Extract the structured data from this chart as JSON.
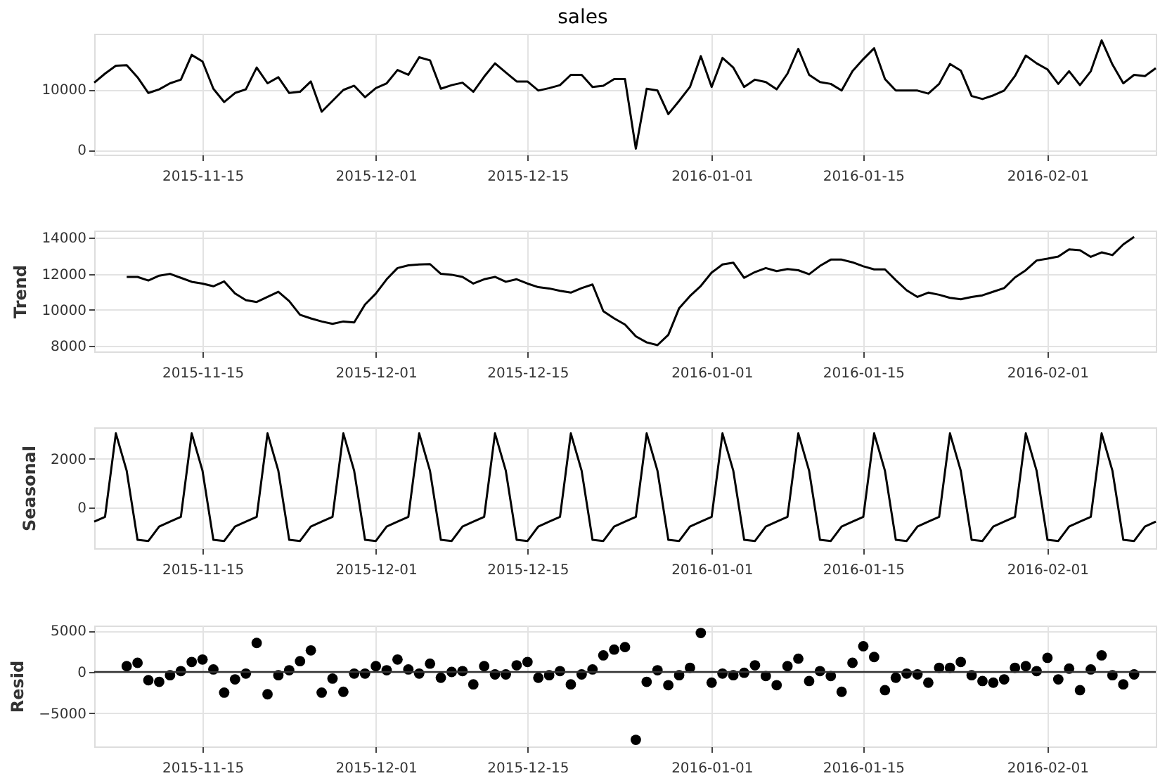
{
  "chart_data": [
    {
      "type": "line",
      "title": "sales",
      "grid": true,
      "line_style": "solid",
      "xlim": [
        "2015-11-05",
        "2016-02-11"
      ],
      "xticks": [
        "2015-11-15",
        "2015-12-01",
        "2015-12-15",
        "2016-01-01",
        "2016-01-15",
        "2016-02-01"
      ],
      "ylim": [
        -800,
        19200
      ],
      "yticks": [
        0,
        10000
      ],
      "x": [
        "2015-11-05",
        "2015-11-06",
        "2015-11-07",
        "2015-11-08",
        "2015-11-09",
        "2015-11-10",
        "2015-11-11",
        "2015-11-12",
        "2015-11-13",
        "2015-11-14",
        "2015-11-15",
        "2015-11-16",
        "2015-11-17",
        "2015-11-18",
        "2015-11-19",
        "2015-11-20",
        "2015-11-21",
        "2015-11-22",
        "2015-11-23",
        "2015-11-24",
        "2015-11-25",
        "2015-11-26",
        "2015-11-27",
        "2015-11-28",
        "2015-11-29",
        "2015-11-30",
        "2015-12-01",
        "2015-12-02",
        "2015-12-03",
        "2015-12-04",
        "2015-12-05",
        "2015-12-06",
        "2015-12-07",
        "2015-12-08",
        "2015-12-09",
        "2015-12-10",
        "2015-12-11",
        "2015-12-12",
        "2015-12-13",
        "2015-12-14",
        "2015-12-15",
        "2015-12-16",
        "2015-12-17",
        "2015-12-18",
        "2015-12-19",
        "2015-12-20",
        "2015-12-21",
        "2015-12-22",
        "2015-12-23",
        "2015-12-24",
        "2015-12-25",
        "2015-12-26",
        "2015-12-27",
        "2015-12-28",
        "2015-12-29",
        "2015-12-30",
        "2015-12-31",
        "2016-01-01",
        "2016-01-02",
        "2016-01-03",
        "2016-01-04",
        "2016-01-05",
        "2016-01-06",
        "2016-01-07",
        "2016-01-08",
        "2016-01-09",
        "2016-01-10",
        "2016-01-11",
        "2016-01-12",
        "2016-01-13",
        "2016-01-14",
        "2016-01-15",
        "2016-01-16",
        "2016-01-17",
        "2016-01-18",
        "2016-01-19",
        "2016-01-20",
        "2016-01-21",
        "2016-01-22",
        "2016-01-23",
        "2016-01-24",
        "2016-01-25",
        "2016-01-26",
        "2016-01-27",
        "2016-01-28",
        "2016-01-29",
        "2016-01-30",
        "2016-01-31",
        "2016-02-01",
        "2016-02-02",
        "2016-02-03",
        "2016-02-04",
        "2016-02-05",
        "2016-02-06",
        "2016-02-07",
        "2016-02-08",
        "2016-02-09",
        "2016-02-10",
        "2016-02-11"
      ],
      "series": [
        {
          "color": "#000000",
          "values": [
            11100,
            12600,
            13900,
            14000,
            12000,
            9400,
            10000,
            11000,
            11600,
            15700,
            14600,
            10100,
            7900,
            9400,
            10000,
            13600,
            11000,
            12000,
            9400,
            9600,
            11300,
            6300,
            8100,
            9900,
            10600,
            8700,
            10200,
            11000,
            13200,
            12400,
            15300,
            14800,
            10100,
            10700,
            11100,
            9600,
            12100,
            14300,
            12800,
            11300,
            11300,
            9800,
            10200,
            10700,
            12400,
            12400,
            10400,
            10600,
            11700,
            11700,
            200,
            10100,
            9800,
            5900,
            8100,
            10400,
            15500,
            10400,
            15200,
            13600,
            10400,
            11600,
            11200,
            10000,
            12600,
            16700,
            12400,
            11200,
            10900,
            9800,
            13000,
            15000,
            16800,
            11700,
            9800,
            9800,
            9800,
            9300,
            10900,
            14200,
            13100,
            8900,
            8400,
            9000,
            9800,
            12200,
            15600,
            14300,
            13300,
            10900,
            13000,
            10700,
            13000,
            18100,
            14100,
            11000,
            12400,
            12200,
            13500
          ]
        }
      ]
    },
    {
      "type": "line",
      "ylabel": "Trend",
      "grid": true,
      "line_style": "solid",
      "xlim": [
        "2015-11-05",
        "2016-02-11"
      ],
      "xticks": [
        "2015-11-15",
        "2015-12-01",
        "2015-12-15",
        "2016-01-01",
        "2016-01-15",
        "2016-02-01"
      ],
      "ylim": [
        7700,
        14400
      ],
      "yticks": [
        8000,
        10000,
        12000,
        14000
      ],
      "x": [
        "2015-11-08",
        "2015-11-09",
        "2015-11-10",
        "2015-11-11",
        "2015-11-12",
        "2015-11-13",
        "2015-11-14",
        "2015-11-15",
        "2015-11-16",
        "2015-11-17",
        "2015-11-18",
        "2015-11-19",
        "2015-11-20",
        "2015-11-21",
        "2015-11-22",
        "2015-11-23",
        "2015-11-24",
        "2015-11-25",
        "2015-11-26",
        "2015-11-27",
        "2015-11-28",
        "2015-11-29",
        "2015-11-30",
        "2015-12-01",
        "2015-12-02",
        "2015-12-03",
        "2015-12-04",
        "2015-12-05",
        "2015-12-06",
        "2015-12-07",
        "2015-12-08",
        "2015-12-09",
        "2015-12-10",
        "2015-12-11",
        "2015-12-12",
        "2015-12-13",
        "2015-12-14",
        "2015-12-15",
        "2015-12-16",
        "2015-12-17",
        "2015-12-18",
        "2015-12-19",
        "2015-12-20",
        "2015-12-21",
        "2015-12-22",
        "2015-12-23",
        "2015-12-24",
        "2015-12-25",
        "2015-12-26",
        "2015-12-27",
        "2015-12-28",
        "2015-12-29",
        "2015-12-30",
        "2015-12-31",
        "2016-01-01",
        "2016-01-02",
        "2016-01-03",
        "2016-01-04",
        "2016-01-05",
        "2016-01-06",
        "2016-01-07",
        "2016-01-08",
        "2016-01-09",
        "2016-01-10",
        "2016-01-11",
        "2016-01-12",
        "2016-01-13",
        "2016-01-14",
        "2016-01-15",
        "2016-01-16",
        "2016-01-17",
        "2016-01-18",
        "2016-01-19",
        "2016-01-20",
        "2016-01-21",
        "2016-01-22",
        "2016-01-23",
        "2016-01-24",
        "2016-01-25",
        "2016-01-26",
        "2016-01-27",
        "2016-01-28",
        "2016-01-29",
        "2016-01-30",
        "2016-01-31",
        "2016-02-01",
        "2016-02-02",
        "2016-02-03",
        "2016-02-04",
        "2016-02-05",
        "2016-02-06",
        "2016-02-07",
        "2016-02-08",
        "2016-02-09"
      ],
      "series": [
        {
          "color": "#000000",
          "values": [
            11830,
            11830,
            11630,
            11900,
            12000,
            11780,
            11560,
            11460,
            11310,
            11580,
            10910,
            10540,
            10440,
            10720,
            11010,
            10490,
            9730,
            9530,
            9360,
            9230,
            9360,
            9310,
            10300,
            10910,
            11700,
            12320,
            12470,
            12520,
            12540,
            12000,
            11950,
            11830,
            11460,
            11700,
            11830,
            11560,
            11700,
            11460,
            11260,
            11190,
            11060,
            10960,
            11210,
            11410,
            9930,
            9530,
            9190,
            8540,
            8200,
            8050,
            8620,
            10100,
            10770,
            11330,
            12070,
            12520,
            12620,
            11780,
            12100,
            12320,
            12150,
            12270,
            12200,
            11980,
            12440,
            12790,
            12790,
            12640,
            12420,
            12250,
            12250,
            11650,
            11090,
            10720,
            10960,
            10840,
            10670,
            10590,
            10720,
            10810,
            11010,
            11210,
            11800,
            12200,
            12740,
            12840,
            12960,
            13360,
            13310,
            12940,
            13190,
            13040,
            13630,
            14050
          ]
        }
      ]
    },
    {
      "type": "line",
      "ylabel": "Seasonal",
      "grid": true,
      "line_style": "solid",
      "xlim": [
        "2015-11-05",
        "2016-02-11"
      ],
      "xticks": [
        "2015-11-15",
        "2015-12-01",
        "2015-12-15",
        "2016-01-01",
        "2016-01-15",
        "2016-02-01"
      ],
      "ylim": [
        -1700,
        3300
      ],
      "yticks": [
        0,
        2000
      ],
      "x": [
        "2015-11-05",
        "2015-11-06",
        "2015-11-07",
        "2015-11-08",
        "2015-11-09",
        "2015-11-10",
        "2015-11-11",
        "2015-11-12",
        "2015-11-13",
        "2015-11-14",
        "2015-11-15",
        "2015-11-16",
        "2015-11-17",
        "2015-11-18",
        "2015-11-19",
        "2015-11-20",
        "2015-11-21",
        "2015-11-22",
        "2015-11-23",
        "2015-11-24",
        "2015-11-25",
        "2015-11-26",
        "2015-11-27",
        "2015-11-28",
        "2015-11-29",
        "2015-11-30",
        "2015-12-01",
        "2015-12-02",
        "2015-12-03",
        "2015-12-04",
        "2015-12-05",
        "2015-12-06",
        "2015-12-07",
        "2015-12-08",
        "2015-12-09",
        "2015-12-10",
        "2015-12-11",
        "2015-12-12",
        "2015-12-13",
        "2015-12-14",
        "2015-12-15",
        "2015-12-16",
        "2015-12-17",
        "2015-12-18",
        "2015-12-19",
        "2015-12-20",
        "2015-12-21",
        "2015-12-22",
        "2015-12-23",
        "2015-12-24",
        "2015-12-25",
        "2015-12-26",
        "2015-12-27",
        "2015-12-28",
        "2015-12-29",
        "2015-12-30",
        "2015-12-31",
        "2016-01-01",
        "2016-01-02",
        "2016-01-03",
        "2016-01-04",
        "2016-01-05",
        "2016-01-06",
        "2016-01-07",
        "2016-01-08",
        "2016-01-09",
        "2016-01-10",
        "2016-01-11",
        "2016-01-12",
        "2016-01-13",
        "2016-01-14",
        "2016-01-15",
        "2016-01-16",
        "2016-01-17",
        "2016-01-18",
        "2016-01-19",
        "2016-01-20",
        "2016-01-21",
        "2016-01-22",
        "2016-01-23",
        "2016-01-24",
        "2016-01-25",
        "2016-01-26",
        "2016-01-27",
        "2016-01-28",
        "2016-01-29",
        "2016-01-30",
        "2016-01-31",
        "2016-02-01",
        "2016-02-02",
        "2016-02-03",
        "2016-02-04",
        "2016-02-05",
        "2016-02-06",
        "2016-02-07",
        "2016-02-08",
        "2016-02-09",
        "2016-02-10",
        "2016-02-11"
      ],
      "series": [
        {
          "color": "#000000",
          "values": [
            -600,
            -400,
            3050,
            1500,
            -1350,
            -1400,
            -800,
            -600,
            -400,
            3050,
            1500,
            -1350,
            -1400,
            -800,
            -600,
            -400,
            3050,
            1500,
            -1350,
            -1400,
            -800,
            -600,
            -400,
            3050,
            1500,
            -1350,
            -1400,
            -800,
            -600,
            -400,
            3050,
            1500,
            -1350,
            -1400,
            -800,
            -600,
            -400,
            3050,
            1500,
            -1350,
            -1400,
            -800,
            -600,
            -400,
            3050,
            1500,
            -1350,
            -1400,
            -800,
            -600,
            -400,
            3050,
            1500,
            -1350,
            -1400,
            -800,
            -600,
            -400,
            3050,
            1500,
            -1350,
            -1400,
            -800,
            -600,
            -400,
            3050,
            1500,
            -1350,
            -1400,
            -800,
            -600,
            -400,
            3050,
            1500,
            -1350,
            -1400,
            -800,
            -600,
            -400,
            3050,
            1500,
            -1350,
            -1400,
            -800,
            -600,
            -400,
            3050,
            1500,
            -1350,
            -1400,
            -800,
            -600,
            -400,
            3050,
            1500,
            -1350,
            -1400,
            -800,
            -600
          ]
        }
      ]
    },
    {
      "type": "scatter",
      "ylabel": "Resid",
      "grid": true,
      "marker": "circle",
      "xlim": [
        "2015-11-05",
        "2016-02-11"
      ],
      "xticks": [
        "2015-11-15",
        "2015-12-01",
        "2015-12-15",
        "2016-01-01",
        "2016-01-15",
        "2016-02-01"
      ],
      "ylim": [
        -9000,
        5600
      ],
      "yticks": [
        -5000,
        0,
        5000
      ],
      "ref_lines": [
        {
          "axis": "y",
          "value": 0,
          "color": "#333333"
        }
      ],
      "x": [
        "2015-11-08",
        "2015-11-09",
        "2015-11-10",
        "2015-11-11",
        "2015-11-12",
        "2015-11-13",
        "2015-11-14",
        "2015-11-15",
        "2015-11-16",
        "2015-11-17",
        "2015-11-18",
        "2015-11-19",
        "2015-11-20",
        "2015-11-21",
        "2015-11-22",
        "2015-11-23",
        "2015-11-24",
        "2015-11-25",
        "2015-11-26",
        "2015-11-27",
        "2015-11-28",
        "2015-11-29",
        "2015-11-30",
        "2015-12-01",
        "2015-12-02",
        "2015-12-03",
        "2015-12-04",
        "2015-12-05",
        "2015-12-06",
        "2015-12-07",
        "2015-12-08",
        "2015-12-09",
        "2015-12-10",
        "2015-12-11",
        "2015-12-12",
        "2015-12-13",
        "2015-12-14",
        "2015-12-15",
        "2015-12-16",
        "2015-12-17",
        "2015-12-18",
        "2015-12-19",
        "2015-12-20",
        "2015-12-21",
        "2015-12-22",
        "2015-12-23",
        "2015-12-24",
        "2015-12-25",
        "2015-12-26",
        "2015-12-27",
        "2015-12-28",
        "2015-12-29",
        "2015-12-30",
        "2015-12-31",
        "2016-01-01",
        "2016-01-02",
        "2016-01-03",
        "2016-01-04",
        "2016-01-05",
        "2016-01-06",
        "2016-01-07",
        "2016-01-08",
        "2016-01-09",
        "2016-01-10",
        "2016-01-11",
        "2016-01-12",
        "2016-01-13",
        "2016-01-14",
        "2016-01-15",
        "2016-01-16",
        "2016-01-17",
        "2016-01-18",
        "2016-01-19",
        "2016-01-20",
        "2016-01-21",
        "2016-01-22",
        "2016-01-23",
        "2016-01-24",
        "2016-01-25",
        "2016-01-26",
        "2016-01-27",
        "2016-01-28",
        "2016-01-29",
        "2016-01-30",
        "2016-01-31",
        "2016-02-01",
        "2016-02-02",
        "2016-02-03",
        "2016-02-04",
        "2016-02-05",
        "2016-02-06",
        "2016-02-07",
        "2016-02-08",
        "2016-02-09"
      ],
      "series": [
        {
          "color": "#000000",
          "values": [
            700,
            1100,
            -1000,
            -1200,
            -400,
            100,
            1200,
            1500,
            300,
            -2500,
            -900,
            -200,
            3500,
            -2700,
            -400,
            200,
            1300,
            2600,
            -2500,
            -800,
            -2400,
            -200,
            -200,
            700,
            200,
            1500,
            300,
            -200,
            1000,
            -700,
            0,
            100,
            -1500,
            700,
            -300,
            -300,
            800,
            1200,
            -700,
            -400,
            100,
            -1500,
            -300,
            300,
            2000,
            2700,
            3000,
            -8200,
            -1200,
            200,
            -1600,
            -400,
            500,
            4700,
            -1300,
            -200,
            -400,
            -100,
            800,
            -500,
            -1600,
            700,
            1600,
            -1100,
            100,
            -500,
            -2400,
            1100,
            3100,
            1800,
            -2200,
            -700,
            -200,
            -300,
            -1300,
            500,
            500,
            1200,
            -400,
            -1100,
            -1300,
            -900,
            500,
            700,
            100,
            1700,
            -900,
            400,
            -2200,
            300,
            2000,
            -400,
            -1500,
            -300
          ]
        }
      ]
    }
  ]
}
